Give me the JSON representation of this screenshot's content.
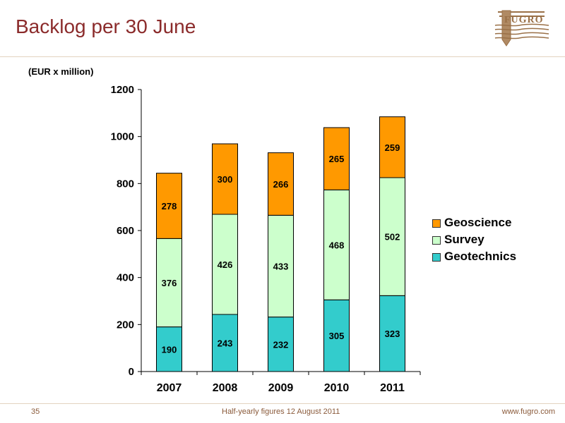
{
  "slide": {
    "title": "Backlog per 30 June",
    "unit_label": "(EUR x million)",
    "logo_text": "FUGRO",
    "footer": {
      "page_number": "35",
      "center_text": "Half-yearly figures 12 August 2011",
      "url": "www.fugro.com"
    }
  },
  "legend": {
    "items": [
      {
        "label": "Geoscience",
        "color": "#ff9900"
      },
      {
        "label": "Survey",
        "color": "#ccffcc"
      },
      {
        "label": "Geotechnics",
        "color": "#33cccc"
      }
    ]
  },
  "chart_data": {
    "type": "bar",
    "stacked": true,
    "categories": [
      "2007",
      "2008",
      "2009",
      "2010",
      "2011"
    ],
    "series": [
      {
        "name": "Geotechnics",
        "color": "#33cccc",
        "values": [
          190,
          243,
          232,
          305,
          323
        ]
      },
      {
        "name": "Survey",
        "color": "#ccffcc",
        "values": [
          376,
          426,
          433,
          468,
          502
        ]
      },
      {
        "name": "Geoscience",
        "color": "#ff9900",
        "values": [
          278,
          300,
          266,
          265,
          259
        ]
      }
    ],
    "title": "",
    "xlabel": "",
    "ylabel": "(EUR x million)",
    "ylim": [
      0,
      1200
    ],
    "yticks": [
      0,
      200,
      400,
      600,
      800,
      1000,
      1200
    ],
    "grid": false,
    "legend_position": "right"
  }
}
